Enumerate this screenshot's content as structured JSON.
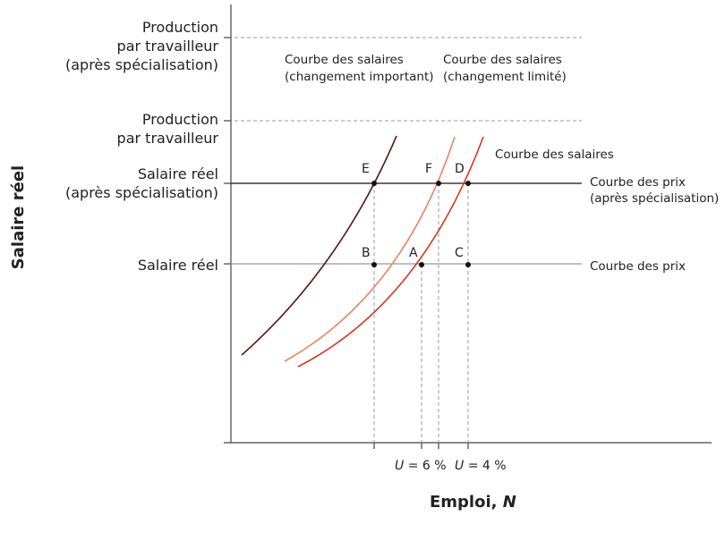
{
  "y_axis_title": "Salaire réel",
  "x_axis_title": {
    "text": "Emploi, ",
    "var": "N"
  },
  "y_labels": [
    [
      "Production",
      "par travailleur",
      "(après spécialisation)"
    ],
    [
      "Production",
      "par travailleur"
    ],
    [
      "Salaire réel",
      "(après spécialisation)"
    ],
    [
      "Salaire réel"
    ]
  ],
  "x_ticks": [
    {
      "var": "U",
      "text": " = 6 %"
    },
    {
      "var": "U",
      "text": " = 4 %"
    }
  ],
  "curve_labels": [
    [
      "Courbe des salaires",
      "(changement important)"
    ],
    [
      "Courbe des salaires",
      "(changement limité)"
    ],
    [
      "Courbe des salaires"
    ],
    [
      "Courbe des prix",
      "(après spécialisation)"
    ],
    [
      "Courbe des prix"
    ]
  ],
  "points": [
    "E",
    "F",
    "D",
    "B",
    "A",
    "C"
  ]
}
